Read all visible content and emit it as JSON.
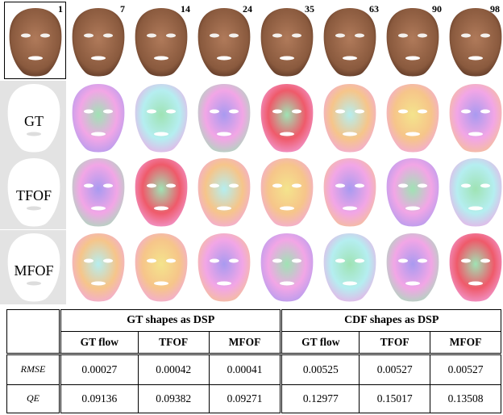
{
  "frames": [
    "1",
    "7",
    "14",
    "24",
    "35",
    "63",
    "90",
    "98"
  ],
  "methods": [
    {
      "label": "GT"
    },
    {
      "label": "TFOF"
    },
    {
      "label": "MFOF"
    }
  ],
  "colors": {
    "skin": "#8a5a3e",
    "panel_gray": "#e3e3e3",
    "flow_pink": "#f2a6e6",
    "flow_green": "#9fe3b4",
    "flow_blue": "#a89af0",
    "flow_orange": "#f6c58a",
    "flow_red": "#ef5a6a",
    "flow_yellow": "#f4e48c",
    "flow_cyan": "#b5eef0"
  },
  "table": {
    "groups": [
      "GT shapes as DSP",
      "CDF shapes as DSP"
    ],
    "subheaders": [
      "GT flow",
      "TFOF",
      "MFOF",
      "GT flow",
      "TFOF",
      "MFOF"
    ],
    "rows": [
      {
        "name": "RMSE",
        "values": [
          "0.00027",
          "0.00042",
          "0.00041",
          "0.00525",
          "0.00527",
          "0.00527"
        ]
      },
      {
        "name": "QE",
        "values": [
          "0.09136",
          "0.09382",
          "0.09271",
          "0.12977",
          "0.15017",
          "0.13508"
        ]
      }
    ]
  }
}
